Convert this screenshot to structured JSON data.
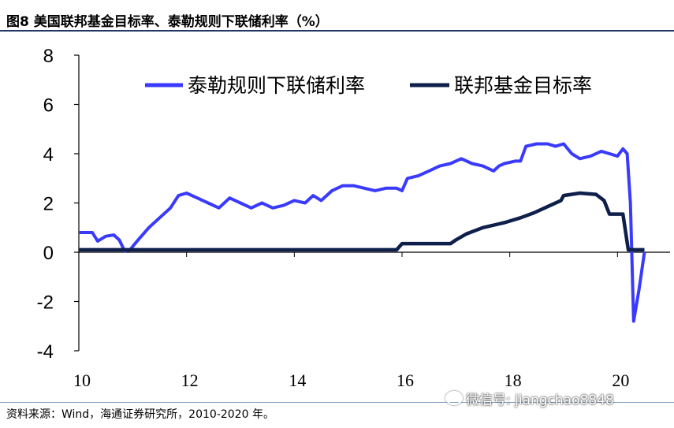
{
  "figure_title": "图8  美国联邦基金目标率、泰勒规则下联储利率（%）",
  "source": "资料来源：Wind，海通证券研究所，2010-2020 年。",
  "watermark": "微信号: jiangchao8848",
  "watermark_icon": "wechat-icon",
  "chart_data": {
    "type": "line",
    "title": "美国联邦基金目标率、泰勒规则下联储利率（%）",
    "xlabel": "",
    "ylabel": "",
    "xlim": [
      2010,
      2020.8
    ],
    "ylim": [
      -4,
      8
    ],
    "x_ticks": [
      2010,
      2012,
      2014,
      2016,
      2018,
      2020
    ],
    "x_tick_labels": [
      "10",
      "12",
      "14",
      "16",
      "18",
      "20"
    ],
    "y_ticks": [
      8,
      6,
      4,
      2,
      0,
      -2,
      -4
    ],
    "y_tick_labels": [
      "8",
      "6",
      "4",
      "2",
      "0",
      "-2",
      "-4"
    ],
    "grid": false,
    "legend_position": "top",
    "series": [
      {
        "name": "泰勒规则下联储利率",
        "color": "#3a3aff",
        "points": [
          [
            2010.0,
            0.8
          ],
          [
            2010.25,
            0.8
          ],
          [
            2010.35,
            0.45
          ],
          [
            2010.5,
            0.65
          ],
          [
            2010.65,
            0.7
          ],
          [
            2010.75,
            0.5
          ],
          [
            2010.85,
            0.05
          ],
          [
            2010.95,
            0.1
          ],
          [
            2011.1,
            0.5
          ],
          [
            2011.3,
            1.0
          ],
          [
            2011.5,
            1.4
          ],
          [
            2011.7,
            1.8
          ],
          [
            2011.85,
            2.3
          ],
          [
            2012.0,
            2.4
          ],
          [
            2012.2,
            2.2
          ],
          [
            2012.4,
            2.0
          ],
          [
            2012.6,
            1.8
          ],
          [
            2012.8,
            2.2
          ],
          [
            2013.0,
            2.0
          ],
          [
            2013.2,
            1.8
          ],
          [
            2013.4,
            2.0
          ],
          [
            2013.6,
            1.8
          ],
          [
            2013.8,
            1.9
          ],
          [
            2014.0,
            2.1
          ],
          [
            2014.2,
            2.0
          ],
          [
            2014.35,
            2.3
          ],
          [
            2014.5,
            2.1
          ],
          [
            2014.7,
            2.5
          ],
          [
            2014.9,
            2.7
          ],
          [
            2015.1,
            2.7
          ],
          [
            2015.3,
            2.6
          ],
          [
            2015.5,
            2.5
          ],
          [
            2015.7,
            2.6
          ],
          [
            2015.9,
            2.6
          ],
          [
            2016.0,
            2.5
          ],
          [
            2016.1,
            3.0
          ],
          [
            2016.3,
            3.1
          ],
          [
            2016.5,
            3.3
          ],
          [
            2016.7,
            3.5
          ],
          [
            2016.9,
            3.6
          ],
          [
            2017.1,
            3.8
          ],
          [
            2017.3,
            3.6
          ],
          [
            2017.5,
            3.5
          ],
          [
            2017.7,
            3.3
          ],
          [
            2017.8,
            3.5
          ],
          [
            2017.9,
            3.6
          ],
          [
            2018.1,
            3.7
          ],
          [
            2018.2,
            3.7
          ],
          [
            2018.3,
            4.3
          ],
          [
            2018.5,
            4.4
          ],
          [
            2018.7,
            4.4
          ],
          [
            2018.85,
            4.3
          ],
          [
            2019.0,
            4.4
          ],
          [
            2019.15,
            4.0
          ],
          [
            2019.3,
            3.8
          ],
          [
            2019.5,
            3.9
          ],
          [
            2019.7,
            4.1
          ],
          [
            2019.85,
            4.0
          ],
          [
            2020.0,
            3.9
          ],
          [
            2020.1,
            4.2
          ],
          [
            2020.18,
            4.0
          ],
          [
            2020.24,
            2.0
          ],
          [
            2020.3,
            -2.8
          ],
          [
            2020.4,
            -1.5
          ],
          [
            2020.5,
            0.0
          ]
        ]
      },
      {
        "name": "联邦基金目标率",
        "color": "#0d1f4a",
        "points": [
          [
            2010.0,
            0.1
          ],
          [
            2015.9,
            0.1
          ],
          [
            2016.0,
            0.35
          ],
          [
            2016.9,
            0.35
          ],
          [
            2017.0,
            0.5
          ],
          [
            2017.2,
            0.75
          ],
          [
            2017.5,
            1.0
          ],
          [
            2017.9,
            1.2
          ],
          [
            2018.2,
            1.4
          ],
          [
            2018.45,
            1.6
          ],
          [
            2018.7,
            1.85
          ],
          [
            2018.95,
            2.1
          ],
          [
            2019.0,
            2.3
          ],
          [
            2019.3,
            2.4
          ],
          [
            2019.6,
            2.35
          ],
          [
            2019.75,
            2.1
          ],
          [
            2019.85,
            1.55
          ],
          [
            2020.1,
            1.55
          ],
          [
            2020.2,
            0.1
          ],
          [
            2020.5,
            0.1
          ]
        ]
      }
    ]
  }
}
